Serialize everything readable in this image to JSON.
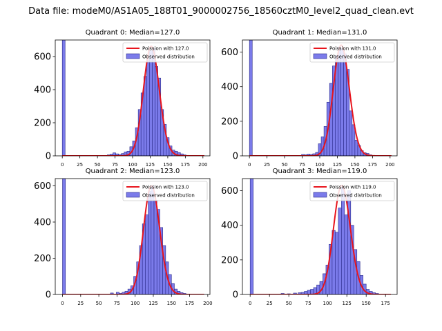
{
  "figure": {
    "suptitle": "Data file: modeM0/AS1A05_188T01_9000002756_18560cztM0_level2_quad_clean.evt"
  },
  "colors": {
    "bar_fill": "#7b7bea",
    "bar_edge": "#2a2a8a",
    "poisson_line": "#e8141c"
  },
  "chart_data": [
    {
      "type": "bar",
      "title": "Quadrant 0: Median=127.0",
      "legend": [
        "Poission with 127.0",
        "Observed distribution"
      ],
      "legend_position": "top-right",
      "xlabel": "",
      "ylabel": "",
      "xlim": [
        -10,
        210
      ],
      "ylim": [
        0,
        700
      ],
      "xticks": [
        0,
        25,
        50,
        75,
        100,
        125,
        150,
        175,
        200
      ],
      "yticks": [
        0,
        200,
        400,
        600
      ],
      "bin_width": 4,
      "poisson_mean": 127.0,
      "poisson_scale": 662,
      "bins": [
        [
          0,
          700
        ],
        [
          64,
          6
        ],
        [
          68,
          10
        ],
        [
          72,
          18
        ],
        [
          76,
          12
        ],
        [
          80,
          8
        ],
        [
          84,
          14
        ],
        [
          88,
          24
        ],
        [
          92,
          28
        ],
        [
          96,
          55
        ],
        [
          100,
          90
        ],
        [
          104,
          170
        ],
        [
          108,
          280
        ],
        [
          112,
          380
        ],
        [
          116,
          480
        ],
        [
          120,
          580
        ],
        [
          124,
          635
        ],
        [
          128,
          650
        ],
        [
          132,
          540
        ],
        [
          136,
          470
        ],
        [
          140,
          280
        ],
        [
          144,
          190
        ],
        [
          148,
          110
        ],
        [
          152,
          60
        ],
        [
          156,
          35
        ],
        [
          160,
          28
        ],
        [
          164,
          20
        ],
        [
          168,
          12
        ],
        [
          172,
          6
        ],
        [
          176,
          3
        ]
      ]
    },
    {
      "type": "bar",
      "title": "Quadrant 1: Median=131.0",
      "legend": [
        "Poission with 131.0",
        "Observed distribution"
      ],
      "legend_position": "top-right",
      "xlabel": "",
      "ylabel": "",
      "xlim": [
        -10,
        210
      ],
      "ylim": [
        0,
        670
      ],
      "xticks": [
        0,
        25,
        50,
        75,
        100,
        125,
        150,
        175,
        200
      ],
      "yticks": [
        0,
        200,
        400,
        600
      ],
      "bin_width": 4,
      "poisson_mean": 131.0,
      "poisson_scale": 640,
      "bins": [
        [
          0,
          670
        ],
        [
          74,
          8
        ],
        [
          78,
          6
        ],
        [
          82,
          10
        ],
        [
          86,
          8
        ],
        [
          90,
          12
        ],
        [
          94,
          20
        ],
        [
          98,
          70
        ],
        [
          102,
          110
        ],
        [
          106,
          170
        ],
        [
          110,
          310
        ],
        [
          114,
          420
        ],
        [
          118,
          520
        ],
        [
          122,
          580
        ],
        [
          126,
          630
        ],
        [
          130,
          620
        ],
        [
          134,
          590
        ],
        [
          138,
          500
        ],
        [
          142,
          260
        ],
        [
          146,
          180
        ],
        [
          150,
          90
        ],
        [
          154,
          60
        ],
        [
          158,
          30
        ],
        [
          162,
          18
        ],
        [
          166,
          14
        ],
        [
          170,
          6
        ]
      ]
    },
    {
      "type": "bar",
      "title": "Quadrant 2: Median=123.0",
      "legend": [
        "Poission with 123.0",
        "Observed distribution"
      ],
      "legend_position": "top-right",
      "xlabel": "",
      "ylabel": "",
      "xlim": [
        -10,
        203
      ],
      "ylim": [
        0,
        640
      ],
      "xticks": [
        0,
        25,
        50,
        75,
        100,
        125,
        150,
        175,
        200
      ],
      "yticks": [
        0,
        200,
        400,
        600
      ],
      "bin_width": 4,
      "poisson_mean": 123.0,
      "poisson_scale": 600,
      "bins": [
        [
          0,
          640
        ],
        [
          66,
          8
        ],
        [
          74,
          12
        ],
        [
          78,
          6
        ],
        [
          82,
          12
        ],
        [
          86,
          18
        ],
        [
          90,
          30
        ],
        [
          94,
          48
        ],
        [
          98,
          100
        ],
        [
          102,
          180
        ],
        [
          106,
          270
        ],
        [
          110,
          390
        ],
        [
          114,
          440
        ],
        [
          118,
          570
        ],
        [
          122,
          600
        ],
        [
          126,
          520
        ],
        [
          130,
          470
        ],
        [
          134,
          370
        ],
        [
          138,
          270
        ],
        [
          142,
          180
        ],
        [
          146,
          110
        ],
        [
          150,
          60
        ],
        [
          154,
          30
        ],
        [
          158,
          18
        ],
        [
          162,
          10
        ],
        [
          166,
          6
        ]
      ]
    },
    {
      "type": "bar",
      "title": "Quadrant 3: Median=119.0",
      "legend": [
        "Poission with 119.0",
        "Observed distribution"
      ],
      "legend_position": "top-right",
      "xlabel": "",
      "ylabel": "",
      "xlim": [
        -10,
        190
      ],
      "ylim": [
        0,
        670
      ],
      "xticks": [
        0,
        25,
        50,
        75,
        100,
        125,
        150,
        175
      ],
      "yticks": [
        0,
        200,
        400,
        600
      ],
      "bin_width": 4,
      "poisson_mean": 119.0,
      "poisson_scale": 630,
      "bins": [
        [
          0,
          670
        ],
        [
          40,
          6
        ],
        [
          48,
          4
        ],
        [
          56,
          8
        ],
        [
          62,
          10
        ],
        [
          66,
          12
        ],
        [
          70,
          18
        ],
        [
          74,
          24
        ],
        [
          78,
          30
        ],
        [
          82,
          40
        ],
        [
          86,
          55
        ],
        [
          90,
          75
        ],
        [
          94,
          120
        ],
        [
          98,
          170
        ],
        [
          102,
          290
        ],
        [
          106,
          370
        ],
        [
          110,
          360
        ],
        [
          114,
          500
        ],
        [
          118,
          620
        ],
        [
          122,
          460
        ],
        [
          126,
          600
        ],
        [
          130,
          400
        ],
        [
          134,
          260
        ],
        [
          138,
          190
        ],
        [
          142,
          110
        ],
        [
          146,
          60
        ],
        [
          150,
          30
        ],
        [
          154,
          18
        ],
        [
          158,
          10
        ],
        [
          162,
          6
        ]
      ]
    }
  ]
}
